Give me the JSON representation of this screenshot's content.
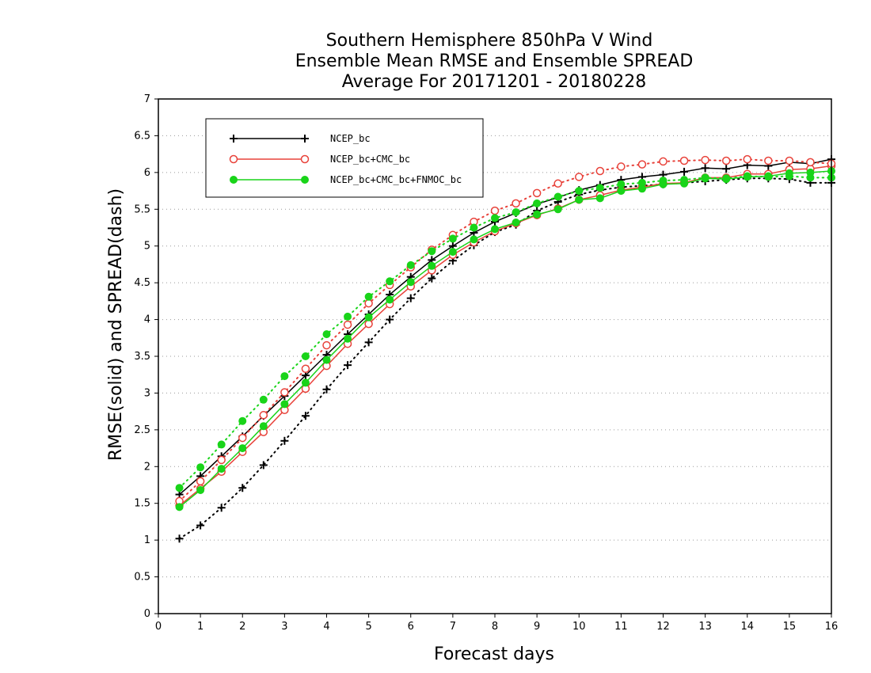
{
  "chart_data": {
    "type": "line",
    "title": [
      "Southern Hemisphere 850hPa V Wind",
      "Ensemble Mean RMSE and Ensemble SPREAD",
      "Average For 20171201 - 20180228"
    ],
    "xlabel": "Forecast days",
    "ylabel": "RMSE(solid) and SPREAD(dash)",
    "xlim": [
      0,
      16
    ],
    "ylim": [
      0,
      7
    ],
    "xticks": [
      "0",
      "1",
      "2",
      "3",
      "4",
      "5",
      "6",
      "7",
      "8",
      "9",
      "10",
      "11",
      "12",
      "13",
      "14",
      "15",
      "16"
    ],
    "yticks": [
      "0",
      "0.5",
      "1",
      "1.5",
      "2",
      "2.5",
      "3",
      "3.5",
      "4",
      "4.5",
      "5",
      "5.5",
      "6",
      "6.5",
      "7"
    ],
    "grid": "horizontal dotted",
    "legend_position": "top-left",
    "x": [
      0.5,
      1,
      1.5,
      2,
      2.5,
      3,
      3.5,
      4,
      4.5,
      5,
      5.5,
      6,
      6.5,
      7,
      7.5,
      8,
      8.5,
      9,
      9.5,
      10,
      10.5,
      11,
      11.5,
      12,
      12.5,
      13,
      13.5,
      14,
      14.5,
      15,
      15.5,
      16
    ],
    "series": [
      {
        "name": "NCEP_bc",
        "color": "#000000",
        "marker": "plus",
        "rmse": [
          1.62,
          1.87,
          2.14,
          2.41,
          2.69,
          2.96,
          3.24,
          3.52,
          3.8,
          4.07,
          4.34,
          4.58,
          4.81,
          5.0,
          5.18,
          5.33,
          5.45,
          5.57,
          5.66,
          5.76,
          5.83,
          5.9,
          5.94,
          5.97,
          6.01,
          6.06,
          6.05,
          6.1,
          6.09,
          6.14,
          6.12,
          6.18
        ],
        "spread": [
          1.02,
          1.2,
          1.44,
          1.71,
          2.02,
          2.35,
          2.69,
          3.05,
          3.38,
          3.69,
          4.0,
          4.29,
          4.56,
          4.8,
          5.01,
          5.19,
          5.29,
          5.48,
          5.6,
          5.7,
          5.76,
          5.8,
          5.82,
          5.84,
          5.86,
          5.88,
          5.9,
          5.92,
          5.92,
          5.91,
          5.86,
          5.86
        ]
      },
      {
        "name": "NCEP_bc+CMC_bc",
        "color": "#e8423a",
        "marker": "open-circle",
        "rmse": [
          1.47,
          1.7,
          1.93,
          2.2,
          2.47,
          2.77,
          3.06,
          3.37,
          3.67,
          3.94,
          4.21,
          4.45,
          4.67,
          4.88,
          5.05,
          5.2,
          5.31,
          5.42,
          5.51,
          5.63,
          5.69,
          5.76,
          5.8,
          5.85,
          5.86,
          5.93,
          5.93,
          5.98,
          5.98,
          6.04,
          6.05,
          6.09
        ],
        "spread": [
          1.53,
          1.8,
          2.09,
          2.39,
          2.7,
          3.01,
          3.33,
          3.65,
          3.93,
          4.22,
          4.47,
          4.71,
          4.95,
          5.15,
          5.33,
          5.48,
          5.58,
          5.72,
          5.85,
          5.94,
          6.02,
          6.08,
          6.11,
          6.15,
          6.16,
          6.17,
          6.16,
          6.18,
          6.16,
          6.16,
          6.14,
          6.12
        ]
      },
      {
        "name": "NCEP_bc+CMC_bc+FNMOC_bc",
        "color": "#19d419",
        "marker": "filled-circle",
        "rmse": [
          1.45,
          1.68,
          1.97,
          2.25,
          2.55,
          2.85,
          3.14,
          3.45,
          3.74,
          4.03,
          4.27,
          4.51,
          4.73,
          4.92,
          5.09,
          5.23,
          5.32,
          5.43,
          5.5,
          5.63,
          5.65,
          5.75,
          5.78,
          5.84,
          5.85,
          5.92,
          5.91,
          5.94,
          5.95,
          5.99,
          6.0,
          6.02
        ],
        "spread": [
          1.71,
          1.99,
          2.3,
          2.62,
          2.91,
          3.23,
          3.5,
          3.8,
          4.04,
          4.31,
          4.52,
          4.74,
          4.93,
          5.1,
          5.25,
          5.38,
          5.46,
          5.58,
          5.67,
          5.75,
          5.79,
          5.84,
          5.86,
          5.89,
          5.9,
          5.93,
          5.92,
          5.95,
          5.94,
          5.95,
          5.93,
          5.93
        ]
      }
    ]
  }
}
